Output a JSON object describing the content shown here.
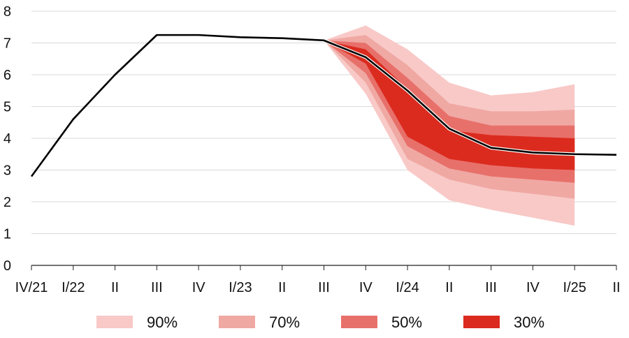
{
  "chart_data": {
    "type": "area",
    "title": "",
    "xlabel": "",
    "ylabel": "",
    "ylim": [
      0,
      8
    ],
    "yticks": [
      0,
      1,
      2,
      3,
      4,
      5,
      6,
      7,
      8
    ],
    "grid": "horizontal",
    "categories": [
      "IV/21",
      "I/22",
      "II",
      "III",
      "IV",
      "I/23",
      "II",
      "III",
      "IV",
      "I/24",
      "II",
      "III",
      "IV",
      "I/25",
      "II"
    ],
    "legend_position": "bottom",
    "series": [
      {
        "kind": "line",
        "color": "#000000",
        "values": [
          2.8,
          4.6,
          6.0,
          7.25,
          7.25,
          7.18,
          7.15,
          7.08,
          6.55,
          5.5,
          4.3,
          3.7,
          3.55,
          3.5,
          3.48
        ]
      }
    ],
    "bands": [
      {
        "name": "90%",
        "color": "#f8c9c7",
        "lower": [
          7.08,
          5.4,
          3.0,
          2.05,
          1.75,
          1.5,
          1.25
        ],
        "upper": [
          7.08,
          7.55,
          6.8,
          5.75,
          5.35,
          5.45,
          5.7
        ]
      },
      {
        "name": "70%",
        "color": "#f0a8a3",
        "lower": [
          7.08,
          5.75,
          3.35,
          2.7,
          2.4,
          2.25,
          2.1
        ],
        "upper": [
          7.08,
          7.25,
          6.3,
          5.1,
          4.85,
          4.85,
          4.9
        ]
      },
      {
        "name": "50%",
        "color": "#e8706a",
        "lower": [
          7.08,
          6.05,
          3.75,
          3.05,
          2.8,
          2.7,
          2.6
        ],
        "upper": [
          7.08,
          7.0,
          5.9,
          4.7,
          4.4,
          4.4,
          4.4
        ]
      },
      {
        "name": "30%",
        "color": "#db2b1f",
        "lower": [
          7.08,
          6.35,
          4.05,
          3.35,
          3.15,
          3.05,
          3.0
        ],
        "upper": [
          7.08,
          6.8,
          5.55,
          4.25,
          4.1,
          4.05,
          4.0
        ]
      }
    ],
    "band_start_index": 7
  }
}
